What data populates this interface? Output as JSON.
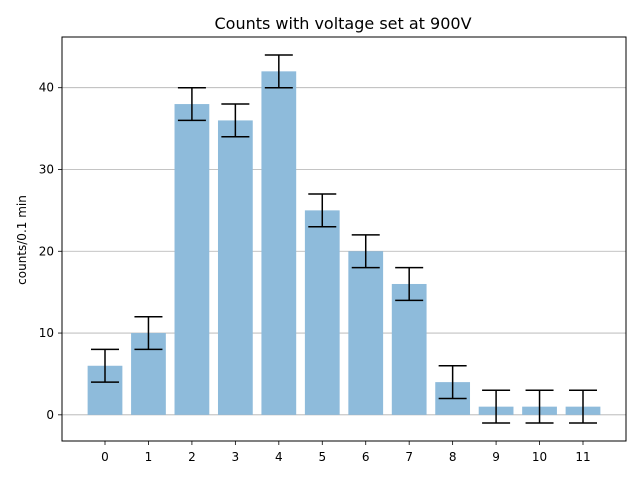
{
  "chart_data": {
    "type": "bar",
    "title": "Counts with voltage set at 900V",
    "xlabel": "",
    "ylabel": "counts/0.1 min",
    "categories": [
      "0",
      "1",
      "2",
      "3",
      "4",
      "5",
      "6",
      "7",
      "8",
      "9",
      "10",
      "11"
    ],
    "values": [
      6,
      10,
      38,
      36,
      42,
      25,
      20,
      16,
      4,
      1,
      1,
      1
    ],
    "error_bars": [
      2,
      2,
      2,
      2,
      2,
      2,
      2,
      2,
      2,
      2,
      2,
      2
    ],
    "ylim": [
      -3.2,
      46.2
    ],
    "yticks": [
      0,
      10,
      20,
      30,
      40
    ],
    "grid": "y",
    "bar_color": "#8ebbdb",
    "error_color": "#000000",
    "grid_color": "#b0b0b0"
  }
}
